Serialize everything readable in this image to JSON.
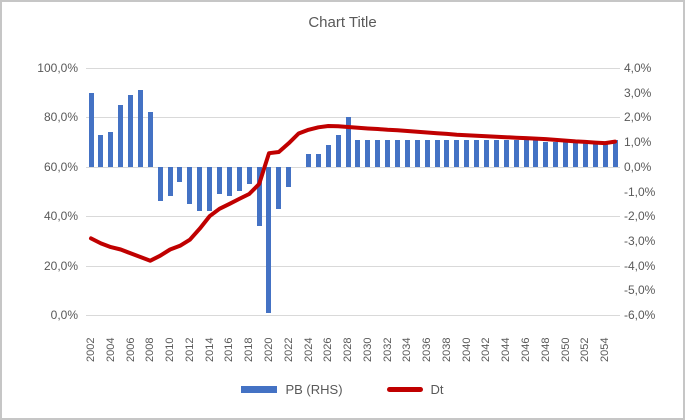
{
  "chart_data": {
    "type": "combo",
    "title": "Chart Title",
    "x": [
      2002,
      2003,
      2004,
      2005,
      2006,
      2007,
      2008,
      2009,
      2010,
      2011,
      2012,
      2013,
      2014,
      2015,
      2016,
      2017,
      2018,
      2019,
      2020,
      2021,
      2022,
      2023,
      2024,
      2025,
      2026,
      2027,
      2028,
      2029,
      2030,
      2031,
      2032,
      2033,
      2034,
      2035,
      2036,
      2037,
      2038,
      2039,
      2040,
      2041,
      2042,
      2043,
      2044,
      2045,
      2046,
      2047,
      2048,
      2049,
      2050,
      2051,
      2052,
      2053,
      2054,
      2055
    ],
    "x_tick_labels": [
      "2002",
      "2004",
      "2006",
      "2008",
      "2010",
      "2012",
      "2014",
      "2016",
      "2018",
      "2020",
      "2022",
      "2024",
      "2026",
      "2028",
      "2030",
      "2032",
      "2034",
      "2036",
      "2038",
      "2040",
      "2042",
      "2044",
      "2046",
      "2048",
      "2050",
      "2052",
      "2054"
    ],
    "series": [
      {
        "name": "PB (RHS)",
        "type": "bar",
        "axis": "right",
        "color": "#4472C4",
        "values": [
          3.0,
          1.3,
          1.4,
          2.5,
          2.9,
          3.1,
          2.2,
          -1.4,
          -1.2,
          -0.6,
          -1.5,
          -1.8,
          -1.8,
          -1.1,
          -1.2,
          -1.0,
          -0.7,
          -2.4,
          -5.9,
          -1.7,
          -0.8,
          0.0,
          0.5,
          0.5,
          0.9,
          1.3,
          2.0,
          1.1,
          1.1,
          1.1,
          1.1,
          1.1,
          1.1,
          1.1,
          1.1,
          1.1,
          1.1,
          1.1,
          1.1,
          1.1,
          1.1,
          1.1,
          1.1,
          1.1,
          1.1,
          1.1,
          1.0,
          1.0,
          1.0,
          1.0,
          1.0,
          1.0,
          1.0,
          1.1
        ]
      },
      {
        "name": "Dt",
        "type": "line",
        "axis": "left",
        "color": "#C00000",
        "values": [
          31,
          29,
          27.5,
          26.5,
          25,
          23.5,
          22,
          24,
          26.5,
          28,
          30.5,
          35,
          40,
          43,
          45,
          47,
          49,
          53,
          65.5,
          66,
          69.5,
          73.5,
          75,
          76,
          76.5,
          76.4,
          76.1,
          75.8,
          75.5,
          75.3,
          75.0,
          74.8,
          74.5,
          74.2,
          73.9,
          73.6,
          73.3,
          73.0,
          72.8,
          72.6,
          72.4,
          72.2,
          72.0,
          71.8,
          71.6,
          71.4,
          71.2,
          70.9,
          70.6,
          70.3,
          70.1,
          69.8,
          69.6,
          70.2
        ]
      }
    ],
    "left_axis": {
      "min": 0,
      "max": 100,
      "step": 20,
      "tick_labels": [
        "100,0%",
        "80,0%",
        "60,0%",
        "40,0%",
        "20,0%",
        "0,0%"
      ]
    },
    "right_axis": {
      "min": -6,
      "max": 4,
      "step": 1,
      "tick_labels": [
        "4,0%",
        "3,0%",
        "2,0%",
        "1,0%",
        "0,0%",
        "-1,0%",
        "-2,0%",
        "-3,0%",
        "-4,0%",
        "-5,0%",
        "-6,0%"
      ]
    },
    "grid": "horizontal",
    "legend_position": "bottom",
    "colors": {
      "grid": "#D9D9D9",
      "text": "#595959",
      "background": "#FFFFFF",
      "border": "#C6C6C6"
    }
  }
}
